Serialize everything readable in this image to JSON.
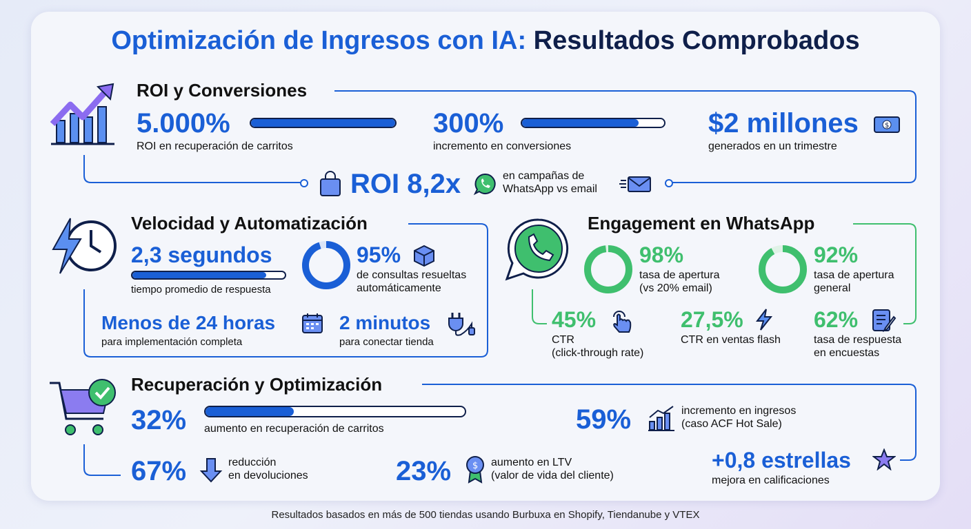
{
  "title": {
    "part1": "Optimización de Ingresos con IA:",
    "part2": "Resultados Comprobados"
  },
  "colors": {
    "blue": "#1a5fd6",
    "green": "#3fbf6e",
    "navy": "#0f1f4a"
  },
  "roi": {
    "heading": "ROI y Conversiones",
    "stat1": {
      "value": "5.000%",
      "label": "ROI en recuperación de carritos",
      "bar_percent": 100
    },
    "stat2": {
      "value": "300%",
      "label": "incremento en conversiones",
      "bar_percent": 82
    },
    "stat3": {
      "value": "$2 millones",
      "label": "generados en un trimestre",
      "icon": "money-icon"
    },
    "highlight": {
      "value": "ROI 8,2x",
      "line1": "en campañas de",
      "line2": "WhatsApp vs email"
    }
  },
  "speed": {
    "heading": "Velocidad y Automatización",
    "stat1": {
      "value": "2,3 segundos",
      "label": "tiempo promedio de respuesta",
      "bar_percent": 88
    },
    "stat2": {
      "value": "95%",
      "line1": "de consultas resueltas",
      "line2": "automáticamente",
      "donut_percent": 95
    },
    "stat3": {
      "value": "Menos de 24 horas",
      "label": "para implementación completa"
    },
    "stat4": {
      "value": "2 minutos",
      "label": "para conectar tienda"
    }
  },
  "whatsapp": {
    "heading": "Engagement en WhatsApp",
    "stat1": {
      "value": "98%",
      "line1": "tasa de apertura",
      "line2": "(vs 20% email)",
      "donut_percent": 98
    },
    "stat2": {
      "value": "92%",
      "line1": "tasa de apertura",
      "line2": "general",
      "donut_percent": 92
    },
    "stat3": {
      "value": "45%",
      "line1": "CTR",
      "line2": "(click-through rate)"
    },
    "stat4": {
      "value": "27,5%",
      "line1": "CTR en ventas flash"
    },
    "stat5": {
      "value": "62%",
      "line1": "tasa de respuesta",
      "line2": "en encuestas"
    }
  },
  "recovery": {
    "heading": "Recuperación y Optimización",
    "stat1": {
      "value": "32%",
      "label": "aumento en recuperación de carritos",
      "bar_percent": 34
    },
    "stat2": {
      "value": "59%",
      "line1": "incremento en ingresos",
      "line2": "(caso ACF Hot Sale)"
    },
    "stat3": {
      "value": "67%",
      "line1": "reducción",
      "line2": "en devoluciones"
    },
    "stat4": {
      "value": "23%",
      "line1": "aumento en LTV",
      "line2": "(valor de vida del cliente)"
    },
    "stat5": {
      "value": "+0,8 estrellas",
      "label": "mejora en calificaciones"
    }
  },
  "footer": "Resultados basados en más de 500 tiendas usando Burbuxa en Shopify, Tiendanube y VTEX"
}
